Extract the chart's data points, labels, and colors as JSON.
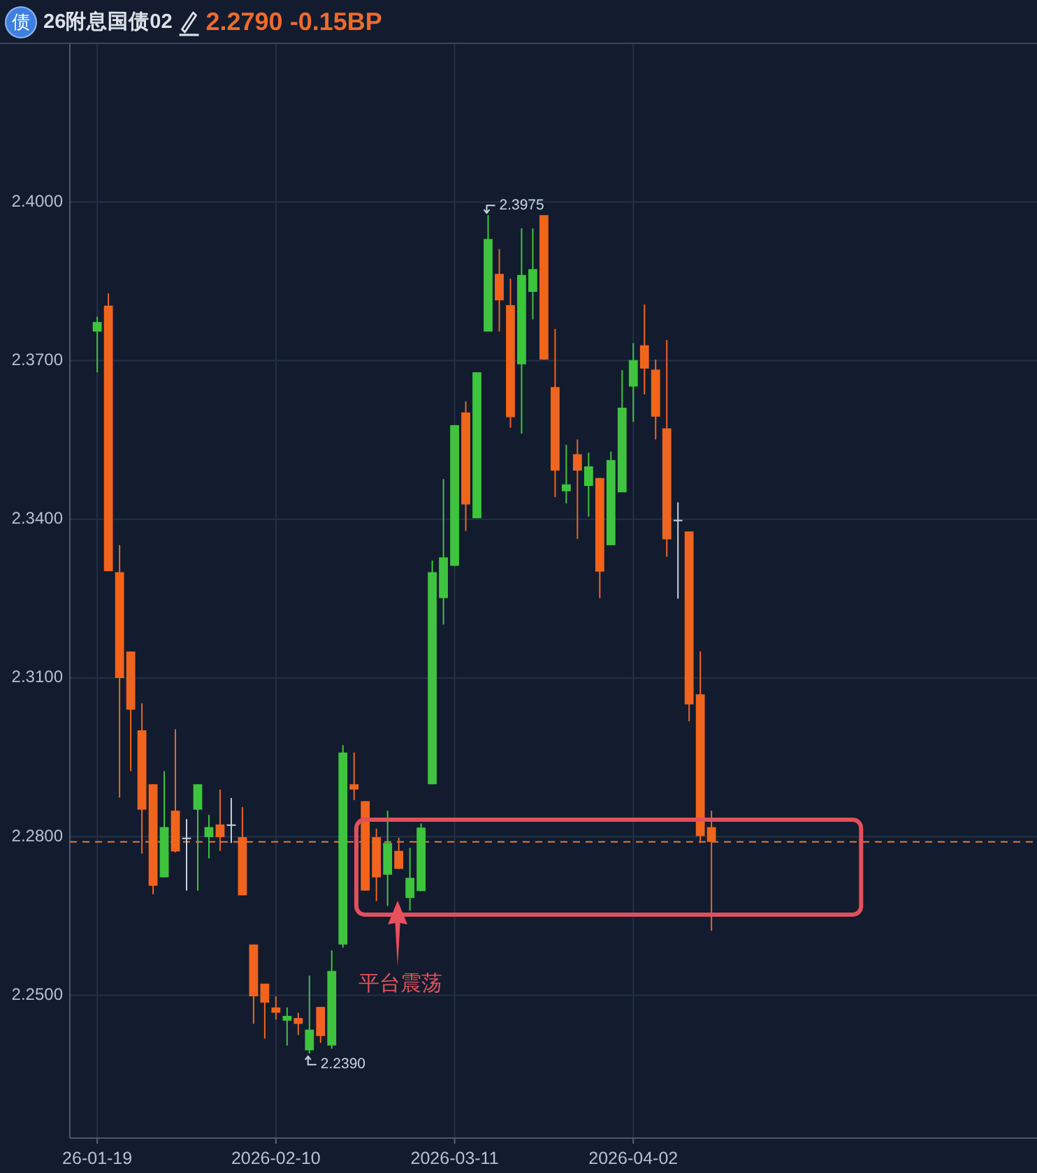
{
  "chart_data": {
    "type": "candlestick",
    "title": "26附息国债02",
    "subtitle": "2.2790 -0.15BP",
    "categories": [
      "26-01-19",
      null,
      null,
      null,
      null,
      null,
      null,
      null,
      null,
      null,
      null,
      null,
      null,
      null,
      null,
      null,
      "2026-02-10",
      null,
      null,
      null,
      null,
      null,
      null,
      null,
      null,
      null,
      null,
      null,
      null,
      null,
      null,
      null,
      "2026-03-11",
      null,
      null,
      null,
      null,
      null,
      null,
      null,
      null,
      null,
      null,
      null,
      null,
      null,
      null,
      null,
      "2026-04-02",
      null,
      null,
      null,
      null,
      null,
      null,
      null
    ],
    "ohlc": [
      [
        2.3755,
        2.3783,
        2.3678,
        2.3773
      ],
      [
        2.3804,
        2.3827,
        2.3302,
        2.3302
      ],
      [
        2.33,
        2.3351,
        2.2874,
        2.31
      ],
      [
        2.315,
        2.315,
        2.2924,
        2.304
      ],
      [
        2.3001,
        2.3052,
        2.2768,
        2.2851
      ],
      [
        2.2899,
        2.2899,
        2.2691,
        2.2707
      ],
      [
        2.2723,
        2.2924,
        2.2723,
        2.2818
      ],
      [
        2.2849,
        2.3003,
        2.277,
        2.2772
      ],
      [
        2.2798,
        2.2833,
        2.2698,
        2.2798
      ],
      [
        2.2851,
        2.2899,
        2.2698,
        2.2899
      ],
      [
        2.2799,
        2.2841,
        2.2759,
        2.2818
      ],
      [
        2.2823,
        2.2889,
        2.2773,
        2.2799
      ],
      [
        2.2823,
        2.2873,
        2.2788,
        2.2823
      ],
      [
        2.2799,
        2.2856,
        2.2689,
        2.2689
      ],
      [
        2.2596,
        2.2596,
        2.2446,
        2.2498
      ],
      [
        2.2522,
        2.2522,
        2.2418,
        2.2486
      ],
      [
        2.2477,
        2.2498,
        2.2454,
        2.2467
      ],
      [
        2.2452,
        2.2477,
        2.2405,
        2.2461
      ],
      [
        2.2457,
        2.2467,
        2.2425,
        2.2446
      ],
      [
        2.2396,
        2.2537,
        2.239,
        2.2435
      ],
      [
        2.2478,
        2.2478,
        2.241,
        2.2423
      ],
      [
        2.2405,
        2.2585,
        2.2399,
        2.2546
      ],
      [
        2.2596,
        2.2973,
        2.259,
        2.2959
      ],
      [
        2.2899,
        2.2959,
        2.2869,
        2.2889
      ],
      [
        2.2867,
        2.2867,
        2.2698,
        2.2698
      ],
      [
        2.2799,
        2.2815,
        2.2678,
        2.2723
      ],
      [
        2.2728,
        2.2849,
        2.2669,
        2.2788
      ],
      [
        2.2773,
        2.2798,
        2.2739,
        2.2739
      ],
      [
        2.2684,
        2.2779,
        2.266,
        2.2722
      ],
      [
        2.2697,
        2.2825,
        2.2697,
        2.2817
      ],
      [
        2.2899,
        2.3322,
        2.2899,
        2.33
      ],
      [
        2.3251,
        2.3476,
        2.3201,
        2.3328
      ],
      [
        2.3312,
        2.3578,
        2.3312,
        2.3578
      ],
      [
        2.3602,
        2.3623,
        2.3378,
        2.3428
      ],
      [
        2.3402,
        2.3678,
        2.3402,
        2.3678
      ],
      [
        2.3755,
        2.3975,
        2.3755,
        2.393
      ],
      [
        2.3864,
        2.3911,
        2.3755,
        2.3814
      ],
      [
        2.3805,
        2.3855,
        2.3573,
        2.3593
      ],
      [
        2.3693,
        2.395,
        2.3562,
        2.3862
      ],
      [
        2.383,
        2.395,
        2.3778,
        2.3873
      ],
      [
        2.3975,
        2.3975,
        2.3702,
        2.3702
      ],
      [
        2.365,
        2.376,
        2.3442,
        2.3492
      ],
      [
        2.3453,
        2.3541,
        2.343,
        2.3466
      ],
      [
        2.3523,
        2.3551,
        2.3363,
        2.3492
      ],
      [
        2.3463,
        2.3526,
        2.3405,
        2.35
      ],
      [
        2.3478,
        2.3478,
        2.3251,
        2.3301
      ],
      [
        2.3351,
        2.3528,
        2.3351,
        2.3512
      ],
      [
        2.3451,
        2.3682,
        2.3451,
        2.3611
      ],
      [
        2.3651,
        2.3733,
        2.3584,
        2.3701
      ],
      [
        2.3729,
        2.3806,
        2.3636,
        2.3685
      ],
      [
        2.3683,
        2.3702,
        2.3551,
        2.3594
      ],
      [
        2.3572,
        2.3739,
        2.3329,
        2.3362
      ],
      [
        2.3399,
        2.3432,
        2.325,
        2.3399
      ],
      [
        2.3377,
        2.3377,
        2.3018,
        2.305
      ],
      [
        2.3069,
        2.315,
        2.2788,
        2.2801
      ],
      [
        2.2818,
        2.2849,
        2.2622,
        2.279
      ]
    ],
    "colors": [
      "#3ec43e",
      "#f0641e",
      "#f0641e",
      "#f0641e",
      "#f0641e",
      "#f0641e",
      "#3ec43e",
      "#f0641e",
      "#c9d2de",
      "#3ec43e",
      "#3ec43e",
      "#f0641e",
      "#c9d2de",
      "#f0641e",
      "#f0641e",
      "#f0641e",
      "#f0641e",
      "#3ec43e",
      "#f0641e",
      "#3ec43e",
      "#f0641e",
      "#3ec43e",
      "#3ec43e",
      "#f0641e",
      "#f0641e",
      "#f0641e",
      "#3ec43e",
      "#f0641e",
      "#3ec43e",
      "#3ec43e",
      "#3ec43e",
      "#3ec43e",
      "#3ec43e",
      "#f0641e",
      "#3ec43e",
      "#3ec43e",
      "#f0641e",
      "#f0641e",
      "#3ec43e",
      "#3ec43e",
      "#f0641e",
      "#f0641e",
      "#3ec43e",
      "#f0641e",
      "#3ec43e",
      "#f0641e",
      "#3ec43e",
      "#3ec43e",
      "#3ec43e",
      "#f0641e",
      "#f0641e",
      "#f0641e",
      "#c9d2de",
      "#f0641e",
      "#f0641e",
      "#f0641e"
    ],
    "ylim": [
      2.223,
      2.43
    ],
    "yticks": [
      {
        "value": 2.25,
        "label": "2.2500"
      },
      {
        "value": 2.28,
        "label": "2.2800"
      },
      {
        "value": 2.31,
        "label": "2.3100"
      },
      {
        "value": 2.34,
        "label": "2.3400"
      },
      {
        "value": 2.37,
        "label": "2.3700"
      },
      {
        "value": 2.4,
        "label": "2.4000"
      }
    ],
    "grid": true,
    "ref_lines": [
      {
        "axis": "y",
        "value": 2.279,
        "color": "#e07a3c",
        "line_style": "dashed"
      }
    ],
    "annotations": [
      "债",
      "2.3975",
      "2.2390",
      "平台震荡"
    ]
  }
}
